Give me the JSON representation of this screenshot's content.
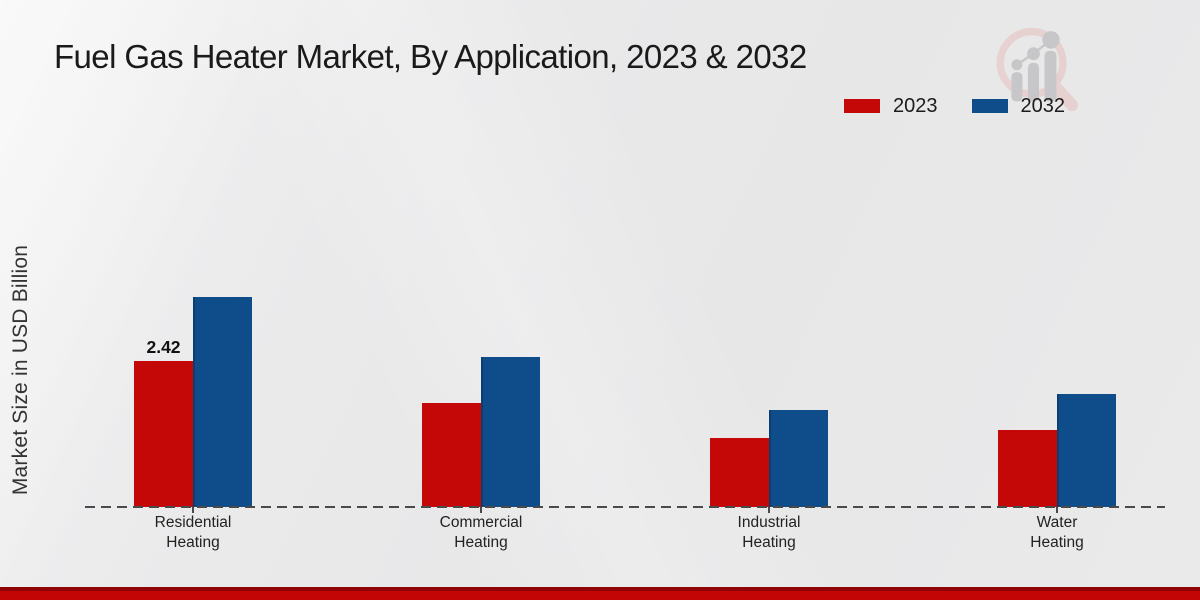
{
  "title": "Fuel Gas Heater Market, By Application, 2023 & 2032",
  "y_axis": {
    "label": "Market Size in USD Billion"
  },
  "legend": {
    "items": [
      {
        "label": "2023",
        "color": "#c40808"
      },
      {
        "label": "2032",
        "color": "#0e4c8a"
      }
    ]
  },
  "chart_data": {
    "type": "bar",
    "title": "Fuel Gas Heater Market, By Application, 2023 & 2032",
    "categories": [
      "Residential Heating",
      "Commercial Heating",
      "Industrial Heating",
      "Water Heating"
    ],
    "series": [
      {
        "name": "2023",
        "color": "#c40808",
        "values": [
          2.42,
          1.72,
          1.14,
          1.28
        ]
      },
      {
        "name": "2032",
        "color": "#0e4c8a",
        "values": [
          3.48,
          2.49,
          1.61,
          1.87
        ]
      }
    ],
    "xlabel": "",
    "ylabel": "Market Size in USD Billion",
    "ylim": [
      0,
      3.8
    ],
    "grid": false,
    "legend_position": "top-right",
    "baseline_style": "dashed",
    "y_axis_ticks_visible": false,
    "data_labels": [
      {
        "series": "2023",
        "category": "Residential Heating",
        "text": "2.42"
      }
    ]
  },
  "footer_bar": {
    "top_color": "#8f0404",
    "color": "#c30505"
  },
  "watermark": {
    "name": "magnifier-bar-chart-logo",
    "ring_color": "#e7cccc",
    "glyph_color": "#c7c7c9"
  }
}
